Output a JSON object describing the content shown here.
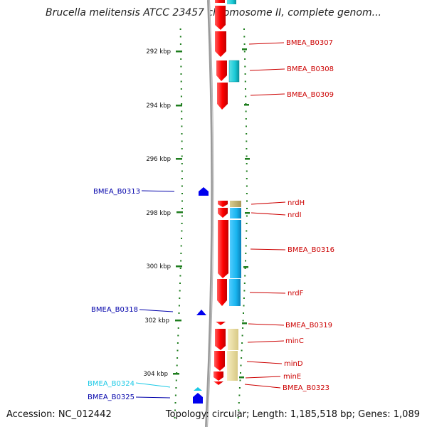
{
  "title": "Brucella melitensis ATCC 23457 chromosome II, complete genom...",
  "footer": {
    "accession": "Accession: NC_012442",
    "topology": "Topology: circular; Length: 1,185,518 bp; Genes: 1,089"
  },
  "colors": {
    "backbone": "#9a9a9a",
    "ruler": "#1e7d1e",
    "gene_forward": "#ff1a1a",
    "gene_reverse": "#0000ee",
    "cyan_feature": "#19c9d6",
    "lightblue_feature": "#17b4ee",
    "tan_feature": "#bfb070",
    "yellow_feature": "#ecdfa0",
    "label_forward": "#cc0000",
    "label_reverse": "#0000aa",
    "label_cyan": "#19c9e6"
  },
  "ruler_ticks": [
    "292 kbp",
    "294 kbp",
    "296 kbp",
    "298 kbp",
    "300 kbp",
    "302 kbp",
    "304 kbp"
  ],
  "forward_genes": [
    {
      "label": "BMEA_B0307"
    },
    {
      "label": "BMEA_B0308"
    },
    {
      "label": "BMEA_B0309"
    },
    {
      "label": "nrdH"
    },
    {
      "label": "nrdI"
    },
    {
      "label": "BMEA_B0316"
    },
    {
      "label": "nrdF"
    },
    {
      "label": "BMEA_B0319"
    },
    {
      "label": "minC"
    },
    {
      "label": "minD"
    },
    {
      "label": "minE"
    },
    {
      "label": "BMEA_B0323"
    }
  ],
  "reverse_genes": [
    {
      "label": "BMEA_B0313"
    },
    {
      "label": "BMEA_B0318"
    },
    {
      "label": "BMEA_B0324"
    },
    {
      "label": "BMEA_B0325"
    }
  ]
}
